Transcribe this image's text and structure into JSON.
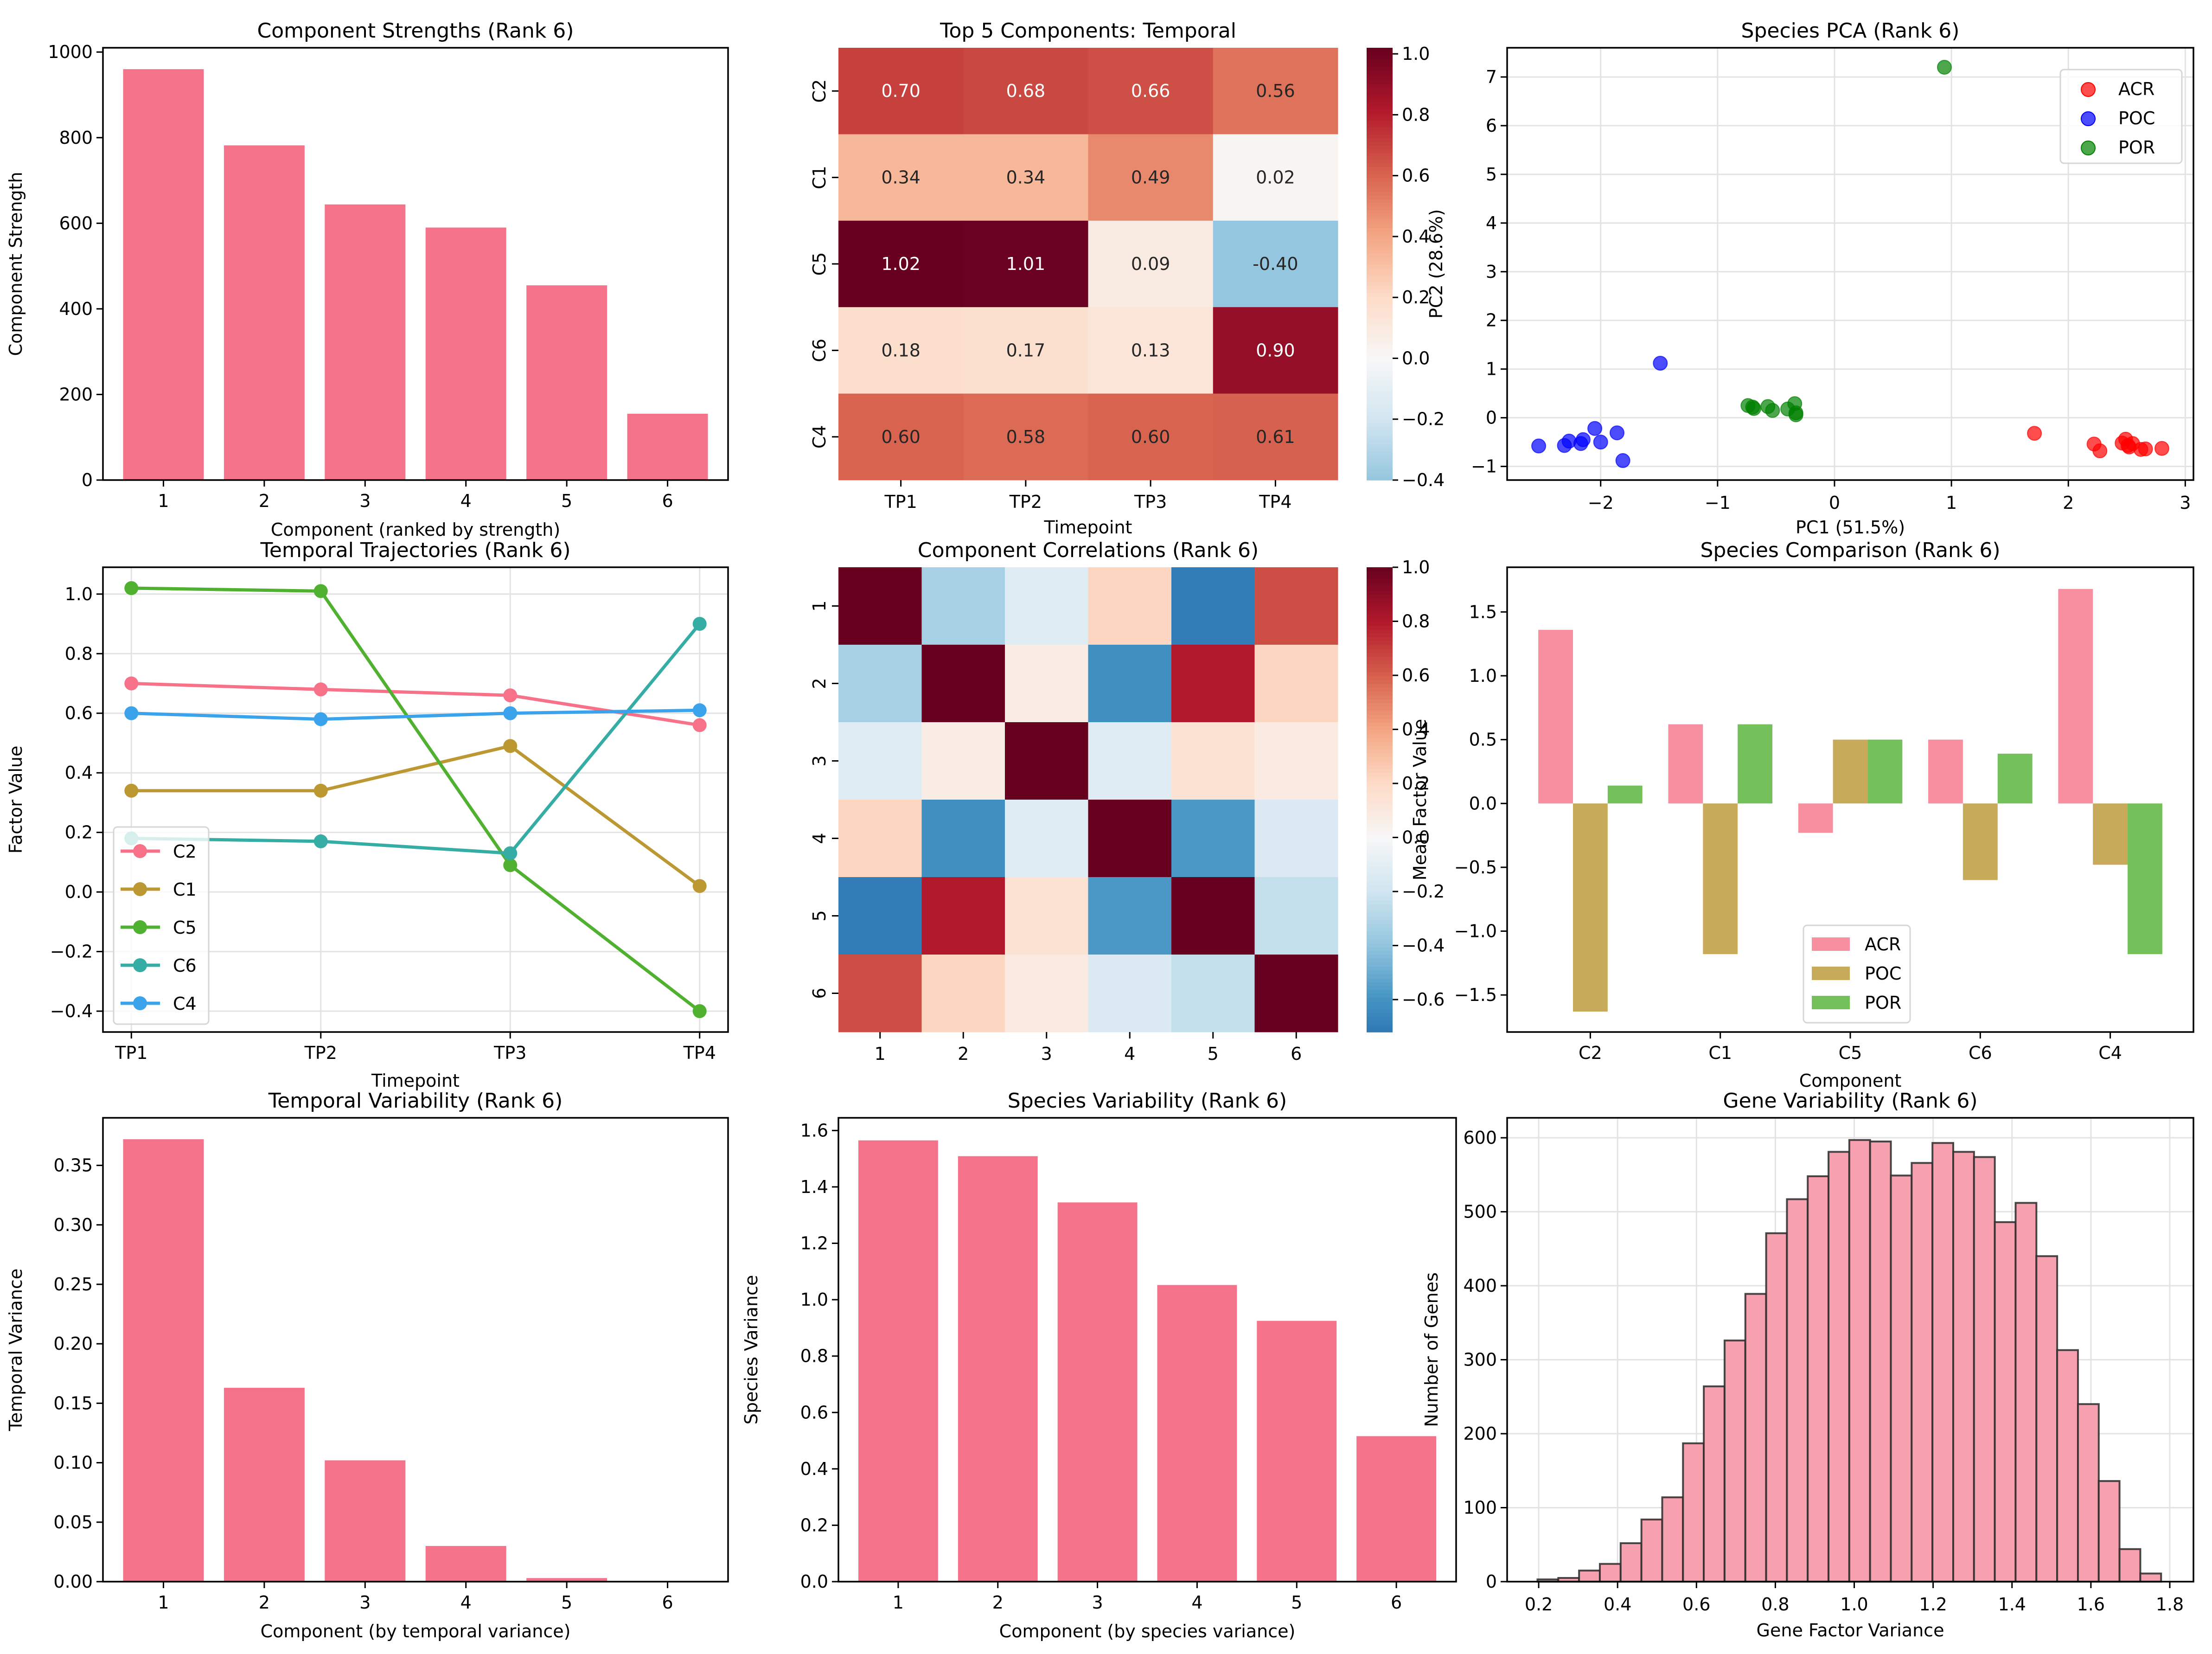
{
  "figure": {
    "title": ""
  },
  "chart_data": [
    {
      "id": "strengths",
      "type": "bar",
      "title": "Component Strengths (Rank 6)",
      "xlabel": "Component (ranked by strength)",
      "ylabel": "Component Strength",
      "categories": [
        "1",
        "2",
        "3",
        "4",
        "5",
        "6"
      ],
      "values": [
        960,
        782,
        644,
        590,
        455,
        155
      ],
      "ylim": [
        0,
        1010
      ],
      "yticks": [
        0,
        200,
        400,
        600,
        800,
        1000
      ],
      "color": "#f5738a",
      "grid": false
    },
    {
      "id": "temporal_heatmap",
      "type": "heatmap",
      "title": "Top 5 Components: Temporal",
      "xlabel": "Timepoint",
      "ylabel": "",
      "columns": [
        "TP1",
        "TP2",
        "TP3",
        "TP4"
      ],
      "rows": [
        "C2",
        "C1",
        "C5",
        "C6",
        "C4"
      ],
      "values": [
        [
          0.7,
          0.68,
          0.66,
          0.56
        ],
        [
          0.34,
          0.34,
          0.49,
          0.02
        ],
        [
          1.02,
          1.01,
          0.09,
          -0.4
        ],
        [
          0.18,
          0.17,
          0.13,
          0.9
        ],
        [
          0.6,
          0.58,
          0.6,
          0.61
        ]
      ],
      "annotated": true,
      "colormap": "RdBu_r",
      "vmin": -0.4,
      "vmax": 1.02,
      "center": 0,
      "colorbar_ticks": [
        1.0,
        0.8,
        0.6,
        0.4,
        0.2,
        0.0,
        -0.2,
        -0.4
      ]
    },
    {
      "id": "species_pca",
      "type": "scatter",
      "title": "Species PCA (Rank 6)",
      "xlabel": "PC1 (51.5%)",
      "ylabel": "PC2 (28.6%)",
      "xlim": [
        -2.8,
        3.07
      ],
      "ylim": [
        -1.28,
        7.6
      ],
      "xticks": [
        -2,
        -1,
        0,
        1,
        2,
        3
      ],
      "yticks": [
        -1,
        0,
        1,
        2,
        3,
        4,
        5,
        6,
        7
      ],
      "grid": true,
      "legend": "top-right",
      "series": [
        {
          "name": "ACR",
          "color": "#ff0000",
          "points": [
            [
              1.71,
              -0.32
            ],
            [
              2.22,
              -0.54
            ],
            [
              2.27,
              -0.68
            ],
            [
              2.46,
              -0.52
            ],
            [
              2.49,
              -0.44
            ],
            [
              2.52,
              -0.6
            ],
            [
              2.55,
              -0.53
            ],
            [
              2.51,
              -0.57
            ],
            [
              2.62,
              -0.65
            ],
            [
              2.66,
              -0.64
            ],
            [
              2.8,
              -0.63
            ]
          ]
        },
        {
          "name": "POC",
          "color": "#0000ff",
          "points": [
            [
              -1.49,
              1.12
            ],
            [
              -2.53,
              -0.58
            ],
            [
              -2.31,
              -0.57
            ],
            [
              -2.27,
              -0.48
            ],
            [
              -2.17,
              -0.53
            ],
            [
              -2.15,
              -0.45
            ],
            [
              -2.05,
              -0.22
            ],
            [
              -2.0,
              -0.5
            ],
            [
              -1.86,
              -0.31
            ],
            [
              -1.81,
              -0.88
            ]
          ]
        },
        {
          "name": "POR",
          "color": "#008000",
          "points": [
            [
              0.94,
              7.2
            ],
            [
              -0.74,
              0.25
            ],
            [
              -0.7,
              0.22
            ],
            [
              -0.69,
              0.19
            ],
            [
              -0.57,
              0.23
            ],
            [
              -0.53,
              0.15
            ],
            [
              -0.4,
              0.18
            ],
            [
              -0.34,
              0.29
            ],
            [
              -0.33,
              0.1
            ],
            [
              -0.33,
              0.06
            ]
          ]
        }
      ]
    },
    {
      "id": "trajectories",
      "type": "line",
      "title": "Temporal Trajectories (Rank 6)",
      "xlabel": "Timepoint",
      "ylabel": "Factor Value",
      "x": [
        "TP1",
        "TP2",
        "TP3",
        "TP4"
      ],
      "ylim": [
        -0.47,
        1.09
      ],
      "yticks": [
        -0.4,
        -0.2,
        0.0,
        0.2,
        0.4,
        0.6,
        0.8,
        1.0
      ],
      "grid": true,
      "legend": "lower-left",
      "series": [
        {
          "name": "C2",
          "color": "#f77189",
          "values": [
            0.7,
            0.68,
            0.66,
            0.56
          ]
        },
        {
          "name": "C1",
          "color": "#bb9832",
          "values": [
            0.34,
            0.34,
            0.49,
            0.02
          ]
        },
        {
          "name": "C5",
          "color": "#50b131",
          "values": [
            1.02,
            1.01,
            0.09,
            -0.4
          ]
        },
        {
          "name": "C6",
          "color": "#36ada4",
          "values": [
            0.18,
            0.17,
            0.13,
            0.9
          ]
        },
        {
          "name": "C4",
          "color": "#3ba3ec",
          "values": [
            0.6,
            0.58,
            0.6,
            0.61
          ]
        }
      ]
    },
    {
      "id": "correlations",
      "type": "heatmap",
      "title": "Component Correlations (Rank 6)",
      "xlabel": "",
      "ylabel": "",
      "columns": [
        "1",
        "2",
        "3",
        "4",
        "5",
        "6"
      ],
      "rows": [
        "1",
        "2",
        "3",
        "4",
        "5",
        "6"
      ],
      "values": [
        [
          1.0,
          -0.33,
          -0.12,
          0.22,
          -0.7,
          0.65
        ],
        [
          -0.33,
          1.0,
          0.08,
          -0.62,
          0.8,
          0.22
        ],
        [
          -0.12,
          0.08,
          1.0,
          -0.12,
          0.15,
          0.09
        ],
        [
          0.22,
          -0.62,
          -0.12,
          1.0,
          -0.58,
          -0.15
        ],
        [
          -0.7,
          0.8,
          0.15,
          -0.58,
          1.0,
          -0.24
        ],
        [
          0.65,
          0.22,
          0.09,
          -0.15,
          -0.24,
          1.0
        ]
      ],
      "annotated": false,
      "colormap": "RdBu_r",
      "vmin": -0.72,
      "vmax": 1.0,
      "center": 0,
      "colorbar_ticks": [
        1.0,
        0.8,
        0.6,
        0.4,
        0.2,
        0.0,
        -0.2,
        -0.4,
        -0.6
      ]
    },
    {
      "id": "species_comparison",
      "type": "bar",
      "title": "Species Comparison (Rank 6)",
      "xlabel": "Component",
      "ylabel": "Mean Factor Value",
      "categories": [
        "C2",
        "C1",
        "C5",
        "C6",
        "C4"
      ],
      "ylim": [
        -1.79,
        1.85
      ],
      "yticks": [
        -1.5,
        -1.0,
        -0.5,
        0.0,
        0.5,
        1.0,
        1.5
      ],
      "legend": "lower-center",
      "series": [
        {
          "name": "ACR",
          "color": "#f78fa0",
          "values": [
            1.36,
            0.62,
            -0.23,
            0.5,
            1.68
          ]
        },
        {
          "name": "POC",
          "color": "#c7ab5b",
          "values": [
            -1.63,
            -1.18,
            0.5,
            -0.6,
            -0.48
          ]
        },
        {
          "name": "POR",
          "color": "#74c05b",
          "values": [
            0.14,
            0.62,
            0.5,
            0.39,
            -1.18
          ]
        }
      ]
    },
    {
      "id": "temporal_variability",
      "type": "bar",
      "title": "Temporal Variability (Rank 6)",
      "xlabel": "Component (by temporal variance)",
      "ylabel": "Temporal Variance",
      "categories": [
        "1",
        "2",
        "3",
        "4",
        "5",
        "6"
      ],
      "values": [
        0.372,
        0.163,
        0.102,
        0.03,
        0.003,
        0.0
      ],
      "ylim": [
        0,
        0.39
      ],
      "yticks": [
        0.0,
        0.05,
        0.1,
        0.15,
        0.2,
        0.25,
        0.3,
        0.35
      ],
      "color": "#f5738a",
      "grid": false
    },
    {
      "id": "species_variability",
      "type": "bar",
      "title": "Species Variability (Rank 6)",
      "xlabel": "Component (by species variance)",
      "ylabel": "Species Variance",
      "categories": [
        "1",
        "2",
        "3",
        "4",
        "5",
        "6"
      ],
      "values": [
        1.565,
        1.509,
        1.345,
        1.052,
        0.925,
        0.516
      ],
      "ylim": [
        0,
        1.645
      ],
      "yticks": [
        0.0,
        0.2,
        0.4,
        0.6,
        0.8,
        1.0,
        1.2,
        1.4,
        1.6
      ],
      "color": "#f5738a",
      "grid": false
    },
    {
      "id": "gene_variability",
      "type": "bar",
      "subtype": "histogram",
      "title": "Gene Variability (Rank 6)",
      "xlabel": "Gene Factor Variance",
      "ylabel": "Number of Genes",
      "bin_start": 0.197,
      "bin_width": 0.0527,
      "counts": [
        3,
        5,
        15,
        24,
        52,
        84,
        114,
        187,
        264,
        326,
        389,
        471,
        517,
        548,
        581,
        597,
        595,
        549,
        566,
        593,
        581,
        574,
        486,
        512,
        440,
        313,
        240,
        136,
        44,
        11
      ],
      "xlim": [
        0.12,
        1.86
      ],
      "ylim": [
        0,
        627
      ],
      "xticks": [
        0.2,
        0.4,
        0.6,
        0.8,
        1.0,
        1.2,
        1.4,
        1.6,
        1.8
      ],
      "yticks": [
        0,
        100,
        200,
        300,
        400,
        500,
        600
      ],
      "color": "#f7a0b0",
      "edgecolor": "#2a2a2a",
      "grid": true
    }
  ]
}
